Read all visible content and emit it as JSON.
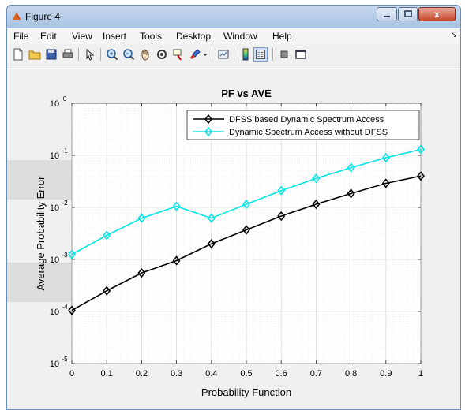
{
  "window": {
    "title": "Figure 4",
    "close_glyph": "x"
  },
  "menu": [
    "File",
    "Edit",
    "View",
    "Insert",
    "Tools",
    "Desktop",
    "Window",
    "Help"
  ],
  "menu_overflow_glyph": "↘",
  "toolbar_icons": [
    "new-figure-icon",
    "open-file-icon",
    "save-icon",
    "print-icon",
    "pointer-icon",
    "zoom-in-icon",
    "zoom-out-icon",
    "pan-icon",
    "rotate-icon",
    "data-cursor-icon",
    "brush-icon",
    "dropdown-arrow-icon",
    "link-plot-icon",
    "colorbar-icon",
    "legend-icon",
    "hide-plot-tools-icon",
    "show-plot-tools-icon"
  ],
  "chart_data": {
    "type": "line",
    "title": "PF vs AVE",
    "xlabel": "Probability Function",
    "ylabel": "Average Probability Error",
    "x": [
      0,
      0.1,
      0.2,
      0.3,
      0.4,
      0.5,
      0.6,
      0.7,
      0.8,
      0.9,
      1
    ],
    "xlim": [
      0,
      1
    ],
    "ylim": [
      1e-05,
      1
    ],
    "yscale": "log",
    "xticks": [
      "0",
      "0.1",
      "0.2",
      "0.3",
      "0.4",
      "0.5",
      "0.6",
      "0.7",
      "0.8",
      "0.9",
      "1"
    ],
    "yticks": [
      {
        "base": "10",
        "exp": "0"
      },
      {
        "base": "10",
        "exp": "-1"
      },
      {
        "base": "10",
        "exp": "-2"
      },
      {
        "base": "10",
        "exp": "-3"
      },
      {
        "base": "10",
        "exp": "-4"
      },
      {
        "base": "10",
        "exp": "-5"
      }
    ],
    "grid": true,
    "legend_position": "top-right",
    "series": [
      {
        "name": "DFSS based Dynamic Spectrum Access",
        "color": "#000000",
        "marker": "diamond",
        "values": [
          0.000105,
          0.00025,
          0.00055,
          0.00095,
          0.002,
          0.0037,
          0.0068,
          0.0115,
          0.0185,
          0.029,
          0.04
        ]
      },
      {
        "name": "Dynamic Spectrum Access without DFSS",
        "color": "#00e5e5",
        "marker": "diamond",
        "values": [
          0.00125,
          0.0029,
          0.0062,
          0.0105,
          0.0062,
          0.0115,
          0.021,
          0.036,
          0.058,
          0.09,
          0.13
        ]
      }
    ]
  }
}
